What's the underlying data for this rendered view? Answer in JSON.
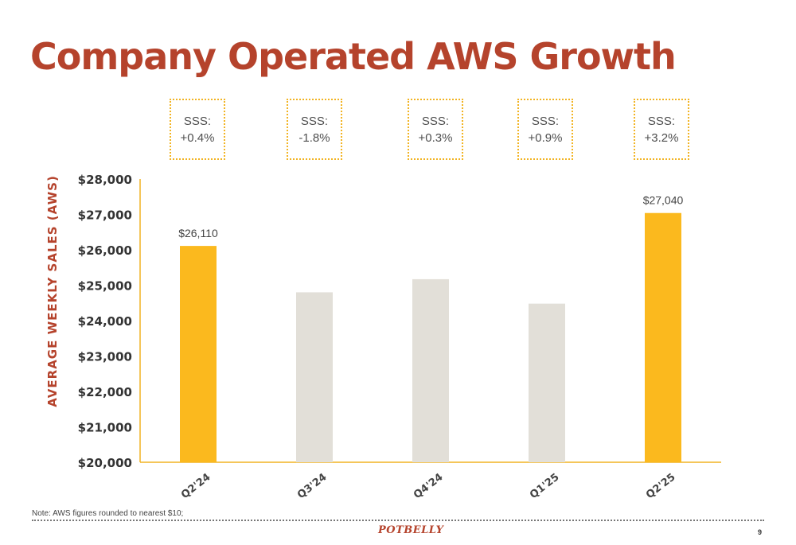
{
  "slide": {
    "title": "Company Operated AWS Growth",
    "note": "Note: AWS figures rounded to nearest $10;",
    "logo_text": "POTBELLY",
    "page_number": "9"
  },
  "colors": {
    "title": "#b5432c",
    "highlight_bar": "#fbb91e",
    "muted_bar": "#e2dfd8",
    "axis": "#f2b423",
    "box_border": "#f2b423"
  },
  "chart_data": {
    "type": "bar",
    "title": "Company Operated AWS Growth",
    "ylabel": "AVERAGE WEEKLY SALES (AWS)",
    "xlabel": "",
    "categories": [
      "Q2'24",
      "Q3'24",
      "Q4'24",
      "Q1'25",
      "Q2'25"
    ],
    "values": [
      26110,
      24800,
      25170,
      24480,
      27040
    ],
    "highlighted": [
      true,
      false,
      false,
      false,
      true
    ],
    "data_labels": [
      "$26,110",
      "",
      "",
      "",
      "$27,040"
    ],
    "sss": [
      {
        "label": "SSS:",
        "value": "+0.4%"
      },
      {
        "label": "SSS:",
        "value": "-1.8%"
      },
      {
        "label": "SSS:",
        "value": "+0.3%"
      },
      {
        "label": "SSS:",
        "value": "+0.9%"
      },
      {
        "label": "SSS:",
        "value": "+3.2%"
      }
    ],
    "ylim": [
      20000,
      28000
    ],
    "yticks": [
      20000,
      21000,
      22000,
      23000,
      24000,
      25000,
      26000,
      27000,
      28000
    ],
    "ytick_labels": [
      "$20,000",
      "$21,000",
      "$22,000",
      "$23,000",
      "$24,000",
      "$25,000",
      "$26,000",
      "$27,000",
      "$28,000"
    ],
    "grid": false,
    "legend": "none"
  }
}
